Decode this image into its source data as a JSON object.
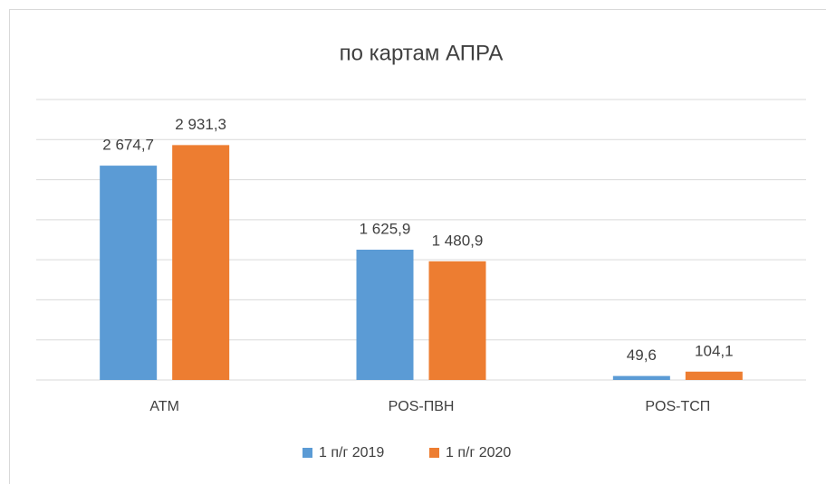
{
  "chart_data": {
    "type": "bar",
    "title": "по картам АПРА",
    "categories": [
      "ATM",
      "POS-ПВН",
      "POS-ТСП"
    ],
    "series": [
      {
        "name": "1 п/г 2019",
        "color": "#5b9bd5",
        "values": [
          2674.7,
          1625.9,
          49.6
        ],
        "value_labels": [
          "2 674,7",
          "1 625,9",
          "49,6"
        ]
      },
      {
        "name": "1 п/г 2020",
        "color": "#ed7d31",
        "values": [
          2931.3,
          1480.9,
          104.1
        ],
        "value_labels": [
          "2 931,3",
          "1 480,9",
          "104,1"
        ]
      }
    ],
    "ylim": [
      0,
      3500
    ],
    "yticks": [
      0,
      500,
      1000,
      1500,
      2000,
      2500,
      3000,
      3500
    ],
    "grid": true,
    "legend": "bottom"
  }
}
